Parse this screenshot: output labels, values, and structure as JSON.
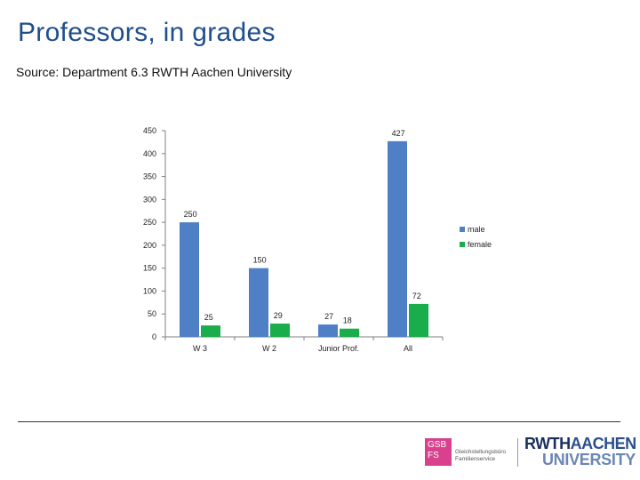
{
  "header": {
    "title": "Professors, in grades",
    "subtitle": "Source: Department 6.3 RWTH Aachen University"
  },
  "chart_data": {
    "type": "bar",
    "categories": [
      "W 3",
      "W 2",
      "Junior Prof.",
      "All"
    ],
    "series": [
      {
        "name": "male",
        "values": [
          250,
          150,
          27,
          427
        ],
        "color": "#4f7fc4"
      },
      {
        "name": "female",
        "values": [
          25,
          29,
          18,
          72
        ],
        "color": "#1aad4b"
      }
    ],
    "y_ticks": [
      0,
      50,
      100,
      150,
      200,
      250,
      300,
      350,
      400,
      450
    ],
    "ylim": [
      0,
      450
    ],
    "grid": false,
    "legend_position": "right"
  },
  "footer": {
    "gsb_box_line1": "GSB",
    "gsb_box_line2": "FS",
    "gsb_text_line1": "Gleichstellungsbüro",
    "gsb_text_line2": "Familienservice",
    "rwth_line1_a": "RWTH",
    "rwth_line1_b": "AACHEN",
    "rwth_line2": "UNIVERSITY"
  }
}
